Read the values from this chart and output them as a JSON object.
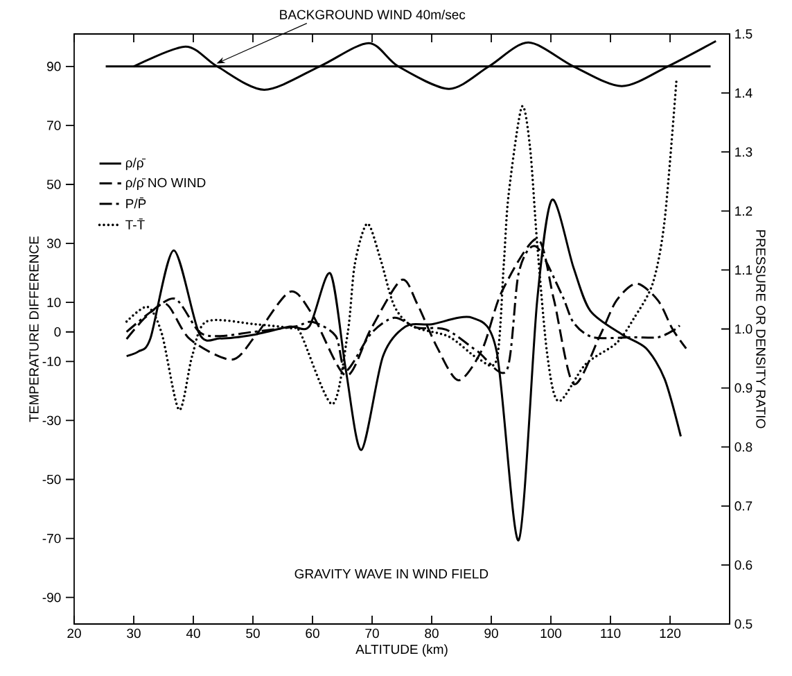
{
  "chart_data": {
    "type": "line",
    "xlabel": "ALTITUDE (km)",
    "ylabel": "TEMPERATURE DIFFERENCE",
    "y2label": "PRESSURE OR DENSITY RATIO",
    "annotations": [
      {
        "text": "BACKGROUND WIND 40m/sec",
        "x": 43.9,
        "y": 91
      },
      "GRAVITY WAVE IN WIND FIELD"
    ],
    "xlim": [
      20,
      130
    ],
    "xticks": [
      20,
      30,
      40,
      50,
      60,
      70,
      80,
      90,
      100,
      110,
      120
    ],
    "ylim": [
      -99,
      101
    ],
    "yticks": [
      -90,
      -70,
      -50,
      -30,
      -10,
      0,
      10,
      30,
      50,
      70,
      90
    ],
    "y2lim": [
      0.5,
      1.5
    ],
    "y2ticks": [
      0.5,
      0.6,
      0.7,
      0.8,
      0.9,
      {
        "value": 1,
        "label": "1.0"
      },
      1.1,
      1.2,
      1.3,
      1.4,
      1.5
    ],
    "legend": "top left",
    "series": [
      {
        "color": "#000000",
        "line_style": "solid",
        "x": [
          25.3,
          126.8
        ],
        "values": [
          90,
          90
        ]
      },
      {
        "color": "#000000",
        "line_style": "solid",
        "x": [
          30,
          38.7,
          44.0,
          51.9,
          61.2,
          69.4,
          74.4,
          82.9,
          89.6,
          96.2,
          103.8,
          111.9,
          119.6,
          127.7
        ],
        "values": [
          90,
          96.7,
          90,
          82.1,
          90,
          97.9,
          90,
          82.4,
          90,
          98.1,
          90,
          83.3,
          90,
          98.6
        ]
      },
      {
        "name": "ρ/ρ̄",
        "color": "#000000",
        "line_style": "solid",
        "axis": "y2",
        "x": [
          28.8,
          30.8,
          32.8,
          36.7,
          41,
          44.5,
          50,
          56.2,
          59.5,
          63,
          65.6,
          68.2,
          71.8,
          75.6,
          80,
          86.8,
          90.9,
          94.6,
          97.7,
          100.2,
          103.8,
          106.6,
          111.9,
          116,
          119.1,
          121.8
        ],
        "values": [
          0.954,
          0.962,
          0.984,
          1.133,
          0.992,
          0.984,
          0.99,
          1.004,
          1.005,
          1.094,
          0.93,
          0.795,
          0.953,
          1.004,
          1.008,
          1.019,
          0.962,
          0.642,
          1.048,
          1.219,
          1.104,
          1.031,
          0.991,
          0.967,
          0.915,
          0.818
        ]
      },
      {
        "name": "ρ/ρ̄ NO WIND",
        "color": "#000000",
        "line_style": "dashed",
        "axis": "y2",
        "x": [
          28.8,
          32,
          35.5,
          39.4,
          46.4,
          50.4,
          56.2,
          60,
          65.6,
          69.8,
          74.9,
          77.6,
          80.9,
          84.5,
          88.5,
          91.8,
          97.7,
          100.5,
          103.8,
          108.2,
          111,
          114.4,
          118,
          120.4,
          122.7
        ],
        "values": [
          0.983,
          1.02,
          1.042,
          0.983,
          0.948,
          0.988,
          1.063,
          1.024,
          0.921,
          1.0,
          1.083,
          1.042,
          0.969,
          0.913,
          0.966,
          1.064,
          1.153,
          1.05,
          0.907,
          0.988,
          1.048,
          1.077,
          1.048,
          1.0,
          0.967
        ]
      },
      {
        "name": "P/P̄",
        "color": "#000000",
        "line_style": "dashdot",
        "axis": "y2",
        "x": [
          28.8,
          33,
          37,
          41,
          44.5,
          50,
          57,
          60,
          63.9,
          65.6,
          69.8,
          73.7,
          77.6,
          82.4,
          87.7,
          92.6,
          94.6,
          97.5,
          101.8,
          103.8,
          107.1,
          113.9,
          118,
          120.8,
          121.6
        ],
        "values": [
          0.995,
          1.03,
          1.051,
          0.995,
          0.988,
          0.995,
          1.004,
          1.012,
          0.988,
          0.929,
          0.992,
          1.019,
          1.002,
          0.999,
          0.962,
          0.93,
          1.095,
          1.14,
          1.059,
          1.011,
          0.986,
          0.986,
          0.986,
          0.999,
          1.006
        ]
      },
      {
        "name": "T-T̄",
        "color": "#000000",
        "line_style": "dotted",
        "x": [
          28.8,
          32.3,
          34.7,
          37.6,
          39.8,
          42.2,
          50.4,
          56.5,
          58,
          63.3,
          65.9,
          67.1,
          69.2,
          71.4,
          73.7,
          76.8,
          82.9,
          87.7,
          90.9,
          92.1,
          92.9,
          95.1,
          96.5,
          97.7,
          99.4,
          101.3,
          105.8,
          111,
          113.9,
          117.1,
          119.1,
          121.1
        ],
        "values": [
          3.5,
          8.5,
          -0.5,
          -26.4,
          -8.2,
          3.5,
          2.6,
          1.2,
          -0.5,
          -24.5,
          -0.5,
          23,
          36.7,
          24.7,
          8.9,
          1.9,
          -1.6,
          -8.9,
          -9.4,
          23,
          46.4,
          76.2,
          62.6,
          30,
          -7.8,
          -23.5,
          -11,
          -3.8,
          4.5,
          16.5,
          38,
          86
        ]
      }
    ]
  }
}
